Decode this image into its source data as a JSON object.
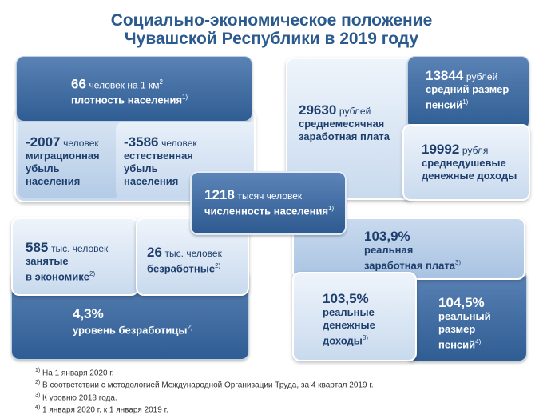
{
  "title": {
    "line1": "Социально-экономическое положение",
    "line2": "Чувашской Республики в 2019 году"
  },
  "density": {
    "value": "66",
    "unit": "человек на 1 км",
    "unit_sup": "2",
    "label": "плотность населения",
    "note": "1)"
  },
  "migration": {
    "value": "-2007",
    "unit": "человек",
    "label1": "миграционная",
    "label2": "убыль",
    "label3": "населения"
  },
  "natural": {
    "value": "-3586",
    "unit": "человек",
    "label1": "естественная",
    "label2": "убыль",
    "label3": "населения"
  },
  "population": {
    "value": "1218",
    "unit": "тысяч человек",
    "label": "численность населения",
    "note": "1)"
  },
  "salary": {
    "value": "29630",
    "unit": "рублей",
    "label1": "среднемесячная",
    "label2": "заработная плата"
  },
  "pension": {
    "value": "13844",
    "unit": "рублей",
    "label1": "средний размер",
    "label2": "пенсий",
    "note": "1)"
  },
  "income": {
    "value": "19992",
    "unit": "рубля",
    "label1": "среднедушевые",
    "label2": "денежные доходы"
  },
  "employed": {
    "value": "585",
    "unit": "тыс. человек",
    "label1": "занятые",
    "label2": "в экономике",
    "note": "2)"
  },
  "unemployed": {
    "value": "26",
    "unit": "тыс. человек",
    "label": "безработные",
    "note": "2)"
  },
  "unemp_rate": {
    "value": "4,3%",
    "label": "уровень безработицы",
    "note": "2)"
  },
  "real_wage": {
    "value": "103,9%",
    "label1": "реальная",
    "label2": "заработная плата",
    "note": "3)"
  },
  "real_income": {
    "value": "103,5%",
    "label1": "реальные",
    "label2": "денежные",
    "label3": "доходы",
    "note": "3)"
  },
  "real_pension": {
    "value": "104,5%",
    "label1": "реальный",
    "label2": "размер",
    "label3": "пенсий",
    "note": "4)"
  },
  "footnotes": [
    {
      "mark": "1)",
      "text": "На 1 января 2020 г."
    },
    {
      "mark": "2)",
      "text": "В соответствии с методологией Международной Организации Труда, за 4 квартал 2019 г."
    },
    {
      "mark": "3)",
      "text": "К уровню 2018 года."
    },
    {
      "mark": "4)",
      "text": "1 января 2020 г. к 1 января 2019 г."
    }
  ],
  "colors": {
    "dark_box": "#2f5d93",
    "light_box": "#d9e6f4",
    "title": "#2a5a8e"
  }
}
